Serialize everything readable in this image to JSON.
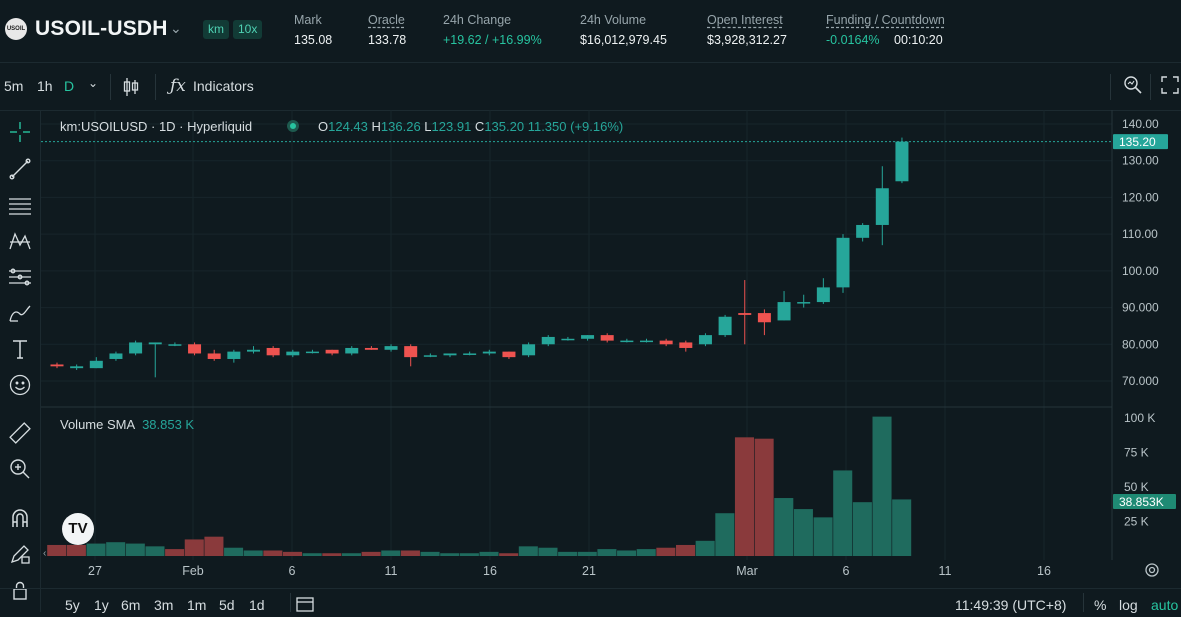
{
  "header": {
    "symbol": "USOIL-USDH",
    "coin_badge": "USOIL",
    "tags": [
      "km",
      "10x"
    ],
    "stats": [
      {
        "label": "Mark",
        "value": "135.08"
      },
      {
        "label": "Oracle",
        "value": "133.78"
      },
      {
        "label": "24h Change",
        "value": "+19.62 / +16.99%"
      },
      {
        "label": "24h Volume",
        "value": "$16,012,979.45"
      },
      {
        "label": "Open Interest",
        "value": "$3,928,312.27"
      },
      {
        "label": "Funding / Countdown",
        "value": "-0.0164%",
        "value2": "00:10:20"
      }
    ]
  },
  "toolbar": {
    "intervals": [
      "5m",
      "1h",
      "D"
    ],
    "indicators_label": "Indicators"
  },
  "legend": {
    "title": "km:USOILUSD · 1D · Hyperliquid",
    "o_label": "O",
    "o": "124.43",
    "h_label": "H",
    "h": "136.26",
    "l_label": "L",
    "l": "123.91",
    "c_label": "C",
    "c": "135.20",
    "change": "11.350 (+9.16%)",
    "vol_label": "Volume SMA",
    "vol_value": "38.853 K"
  },
  "bottom": {
    "ranges": [
      "5y",
      "1y",
      "6m",
      "3m",
      "1m",
      "5d",
      "1d"
    ],
    "time": "11:49:39 (UTC+8)",
    "pct": "%",
    "log": "log",
    "auto": "auto"
  },
  "colors": {
    "up": "#26a69a",
    "down": "#ef5350",
    "accent": "#27c4a0",
    "bg": "#0f1a1f"
  },
  "chart_data": {
    "type": "candlestick",
    "price_axis": {
      "ticks": [
        "140.00",
        "130.00",
        "120.00",
        "110.00",
        "100.00",
        "90.000",
        "80.000",
        "70.000"
      ],
      "last_price_label": "135.20",
      "range": [
        66,
        143
      ]
    },
    "volume_axis": {
      "ticks": [
        "100 K",
        "75 K",
        "50 K",
        "25 K"
      ],
      "sma_label": "38.853K",
      "range": [
        0,
        105
      ]
    },
    "x_ticks": [
      "27",
      "Feb",
      "6",
      "11",
      "16",
      "21",
      "Mar",
      "6",
      "11",
      "16"
    ],
    "candles": [
      {
        "o": 74.5,
        "h": 75,
        "l": 73.5,
        "c": 74
      },
      {
        "o": 73.5,
        "h": 74.5,
        "l": 73,
        "c": 74
      },
      {
        "o": 73.5,
        "h": 76.5,
        "l": 73.5,
        "c": 75.5
      },
      {
        "o": 76,
        "h": 78,
        "l": 75.5,
        "c": 77.5
      },
      {
        "o": 77.5,
        "h": 81,
        "l": 77,
        "c": 80.5
      },
      {
        "o": 80,
        "h": 80.5,
        "l": 71,
        "c": 80.5
      },
      {
        "o": 80,
        "h": 80.5,
        "l": 79.5,
        "c": 80
      },
      {
        "o": 80,
        "h": 80.5,
        "l": 77,
        "c": 77.5
      },
      {
        "o": 77.5,
        "h": 78.5,
        "l": 75.5,
        "c": 76
      },
      {
        "o": 76,
        "h": 78.5,
        "l": 75,
        "c": 78
      },
      {
        "o": 78,
        "h": 79.5,
        "l": 77.5,
        "c": 78.5
      },
      {
        "o": 79,
        "h": 79.5,
        "l": 76.5,
        "c": 77
      },
      {
        "o": 77,
        "h": 78.5,
        "l": 76.5,
        "c": 78
      },
      {
        "o": 78,
        "h": 78.5,
        "l": 77.5,
        "c": 78
      },
      {
        "o": 78.5,
        "h": 78.5,
        "l": 77,
        "c": 77.5
      },
      {
        "o": 77.5,
        "h": 79.5,
        "l": 77,
        "c": 79
      },
      {
        "o": 79,
        "h": 79.5,
        "l": 78.5,
        "c": 78.5
      },
      {
        "o": 78.5,
        "h": 80,
        "l": 78,
        "c": 79.5
      },
      {
        "o": 79.5,
        "h": 80,
        "l": 74,
        "c": 76.5
      },
      {
        "o": 77,
        "h": 77.5,
        "l": 76.5,
        "c": 77
      },
      {
        "o": 77,
        "h": 77.5,
        "l": 76.5,
        "c": 77.5
      },
      {
        "o": 77.5,
        "h": 78,
        "l": 77,
        "c": 77.5
      },
      {
        "o": 77.5,
        "h": 78.5,
        "l": 77,
        "c": 78
      },
      {
        "o": 78,
        "h": 78,
        "l": 76,
        "c": 76.5
      },
      {
        "o": 77,
        "h": 80.5,
        "l": 76.5,
        "c": 80
      },
      {
        "o": 80,
        "h": 82.5,
        "l": 79.5,
        "c": 82
      },
      {
        "o": 81.5,
        "h": 82,
        "l": 81,
        "c": 81.5
      },
      {
        "o": 81.5,
        "h": 82.5,
        "l": 81,
        "c": 82.5
      },
      {
        "o": 82.5,
        "h": 83,
        "l": 80.5,
        "c": 81
      },
      {
        "o": 81,
        "h": 81.5,
        "l": 80.5,
        "c": 81
      },
      {
        "o": 81,
        "h": 81.5,
        "l": 80.5,
        "c": 81
      },
      {
        "o": 81,
        "h": 81.5,
        "l": 79.5,
        "c": 80
      },
      {
        "o": 80.5,
        "h": 81,
        "l": 78,
        "c": 79
      },
      {
        "o": 80,
        "h": 83,
        "l": 79.5,
        "c": 82.5
      },
      {
        "o": 82.5,
        "h": 88,
        "l": 82,
        "c": 87.5
      },
      {
        "o": 88.5,
        "h": 97.5,
        "l": 80,
        "c": 88
      },
      {
        "o": 88.5,
        "h": 89.5,
        "l": 82.5,
        "c": 86
      },
      {
        "o": 86.5,
        "h": 94.5,
        "l": 86.5,
        "c": 91.5
      },
      {
        "o": 91.5,
        "h": 93.5,
        "l": 90,
        "c": 91.5
      },
      {
        "o": 91.5,
        "h": 98,
        "l": 91,
        "c": 95.5
      },
      {
        "o": 95.5,
        "h": 110,
        "l": 94,
        "c": 109
      },
      {
        "o": 109,
        "h": 113,
        "l": 108,
        "c": 112.5
      },
      {
        "o": 112.5,
        "h": 128.5,
        "l": 107,
        "c": 122.5
      },
      {
        "o": 124.4,
        "h": 136.3,
        "l": 123.9,
        "c": 135.2
      }
    ],
    "volume": [
      [
        8,
        "down"
      ],
      [
        8,
        "down"
      ],
      [
        9,
        "up"
      ],
      [
        10,
        "up"
      ],
      [
        9,
        "up"
      ],
      [
        7,
        "up"
      ],
      [
        5,
        "down"
      ],
      [
        12,
        "down"
      ],
      [
        14,
        "down"
      ],
      [
        6,
        "up"
      ],
      [
        4,
        "up"
      ],
      [
        4,
        "down"
      ],
      [
        3,
        "down"
      ],
      [
        2,
        "up"
      ],
      [
        2,
        "down"
      ],
      [
        2,
        "up"
      ],
      [
        3,
        "down"
      ],
      [
        4,
        "up"
      ],
      [
        4,
        "down"
      ],
      [
        3,
        "up"
      ],
      [
        2,
        "up"
      ],
      [
        2,
        "up"
      ],
      [
        3,
        "up"
      ],
      [
        2,
        "down"
      ],
      [
        7,
        "up"
      ],
      [
        6,
        "up"
      ],
      [
        3,
        "up"
      ],
      [
        3,
        "up"
      ],
      [
        5,
        "up"
      ],
      [
        4,
        "up"
      ],
      [
        5,
        "up"
      ],
      [
        6,
        "down"
      ],
      [
        8,
        "down"
      ],
      [
        11,
        "up"
      ],
      [
        31,
        "up"
      ],
      [
        86,
        "down"
      ],
      [
        85,
        "down"
      ],
      [
        42,
        "up"
      ],
      [
        34,
        "up"
      ],
      [
        28,
        "up"
      ],
      [
        62,
        "up"
      ],
      [
        39,
        "up"
      ],
      [
        101,
        "up"
      ],
      [
        41,
        "up"
      ]
    ]
  }
}
